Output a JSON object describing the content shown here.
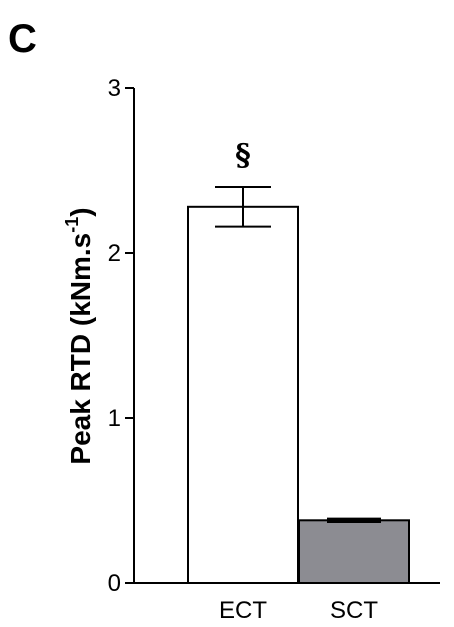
{
  "panel_label": "C",
  "chart_data": {
    "type": "bar",
    "categories": [
      "ECT",
      "SCT"
    ],
    "values": [
      2.28,
      0.38
    ],
    "errors": [
      0.12,
      0.01
    ],
    "annotations": [
      "§",
      ""
    ],
    "ylabel": "Peak RTD (kNm.s",
    "ylabel_superscript": "-1",
    "ylabel_close": ")",
    "ylim": [
      0,
      3
    ],
    "yticks": [
      0,
      1,
      2,
      3
    ],
    "ytick_labels": [
      "0",
      "1",
      "2",
      "3"
    ],
    "bar_colors": [
      "#ffffff",
      "#8c8c92"
    ]
  }
}
